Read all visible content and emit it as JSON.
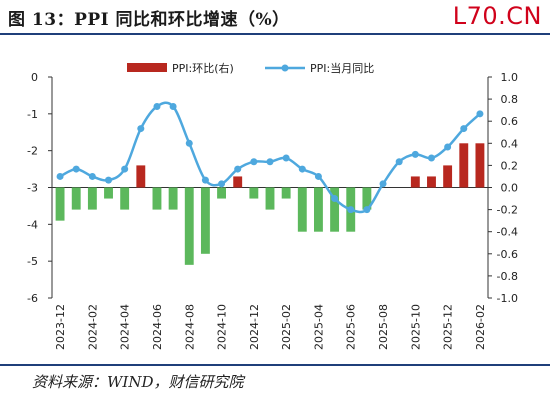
{
  "title": "图 13：PPI 同比和环比增速（%）",
  "watermark": "L70.CN",
  "source": "资料来源：WIND，财信研究院",
  "chart_data": {
    "type": "bar+line",
    "categories": [
      "2023-12",
      "2024-01",
      "2024-02",
      "2024-03",
      "2024-04",
      "2024-05",
      "2024-06",
      "2024-07",
      "2024-08",
      "2024-09",
      "2024-10",
      "2024-11",
      "2024-12",
      "2025-01",
      "2025-02",
      "2025-03",
      "2025-04",
      "2025-05",
      "2025-06",
      "2025-07",
      "2025-08",
      "2025-09",
      "2025-10",
      "2025-11",
      "2025-12",
      "2026-01",
      "2026-02"
    ],
    "tick_labels": [
      "2023-12",
      "2024-02",
      "2024-04",
      "2024-06",
      "2024-08",
      "2024-10",
      "2024-12",
      "2025-02",
      "2025-04",
      "2025-06",
      "2025-08",
      "2025-10",
      "2025-12",
      "2026-02"
    ],
    "left_axis": {
      "ylim": [
        -6,
        0
      ],
      "ticks": [
        "0",
        "-1",
        "-2",
        "-3",
        "-4",
        "-5",
        "-6"
      ]
    },
    "right_axis": {
      "ylim": [
        -1.0,
        1.0
      ],
      "ticks": [
        "1.0",
        "0.8",
        "0.6",
        "0.4",
        "0.2",
        "0.0",
        "-0.2",
        "-0.4",
        "-0.6",
        "-0.8",
        "-1.0"
      ]
    },
    "series": [
      {
        "name": "PPI:环比(右)",
        "type": "bar",
        "axis": "right",
        "color_pos": "#b8281f",
        "color_neg": "#5cb85c",
        "values": [
          -0.3,
          -0.2,
          -0.2,
          -0.1,
          -0.2,
          0.2,
          -0.2,
          -0.2,
          -0.7,
          -0.6,
          -0.1,
          0.1,
          -0.1,
          -0.2,
          -0.1,
          -0.4,
          -0.4,
          -0.4,
          -0.4,
          -0.2,
          0.0,
          0.0,
          0.1,
          0.1,
          0.2,
          0.4,
          0.4
        ]
      },
      {
        "name": "PPI:当月同比",
        "type": "line",
        "axis": "left",
        "color": "#4ea8de",
        "values": [
          -2.7,
          -2.5,
          -2.7,
          -2.8,
          -2.5,
          -1.4,
          -0.8,
          -0.8,
          -1.8,
          -2.8,
          -2.9,
          -2.5,
          -2.3,
          -2.3,
          -2.2,
          -2.5,
          -2.7,
          -3.3,
          -3.6,
          -3.6,
          -2.9,
          -2.3,
          -2.1,
          -2.2,
          -1.9,
          -1.4,
          -1.0
        ]
      }
    ],
    "legend": "top"
  }
}
